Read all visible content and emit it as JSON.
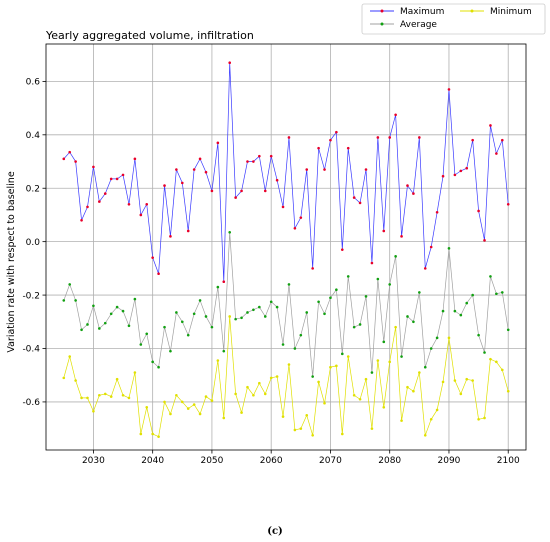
{
  "chart_data": {
    "type": "line",
    "title": "Yearly aggregated volume, infiltration",
    "xlabel": "",
    "ylabel": "Variation rate with respect to baseline",
    "caption": "(c)",
    "xlim": [
      2022,
      2103
    ],
    "ylim": [
      -0.78,
      0.74
    ],
    "xticks": [
      2030,
      2040,
      2050,
      2060,
      2070,
      2080,
      2090,
      2100
    ],
    "yticks": [
      -0.6,
      -0.4,
      -0.2,
      0.0,
      0.2,
      0.4,
      0.6
    ],
    "grid": true,
    "legend_position": "top-right, above plot",
    "x": [
      2025,
      2026,
      2027,
      2028,
      2029,
      2030,
      2031,
      2032,
      2033,
      2034,
      2035,
      2036,
      2037,
      2038,
      2039,
      2040,
      2041,
      2042,
      2043,
      2044,
      2045,
      2046,
      2047,
      2048,
      2049,
      2050,
      2051,
      2052,
      2053,
      2054,
      2055,
      2056,
      2057,
      2058,
      2059,
      2060,
      2061,
      2062,
      2063,
      2064,
      2065,
      2066,
      2067,
      2068,
      2069,
      2070,
      2071,
      2072,
      2073,
      2074,
      2075,
      2076,
      2077,
      2078,
      2079,
      2080,
      2081,
      2082,
      2083,
      2084,
      2085,
      2086,
      2087,
      2088,
      2089,
      2090,
      2091,
      2092,
      2093,
      2094,
      2095,
      2096,
      2097,
      2098,
      2099,
      2100
    ],
    "series": [
      {
        "name": "Maximum",
        "line_color": "#3a3aff",
        "marker_color": "#e8002a",
        "values": [
          0.31,
          0.335,
          0.3,
          0.08,
          0.13,
          0.28,
          0.15,
          0.18,
          0.235,
          0.235,
          0.25,
          0.14,
          0.31,
          0.1,
          0.14,
          -0.06,
          -0.12,
          0.21,
          0.02,
          0.27,
          0.22,
          0.04,
          0.27,
          0.31,
          0.26,
          0.19,
          0.37,
          -0.15,
          0.67,
          0.165,
          0.19,
          0.3,
          0.3,
          0.32,
          0.19,
          0.32,
          0.23,
          0.13,
          0.39,
          0.05,
          0.09,
          0.27,
          -0.1,
          0.35,
          0.27,
          0.38,
          0.41,
          -0.03,
          0.35,
          0.165,
          0.145,
          0.27,
          -0.08,
          0.39,
          0.04,
          0.39,
          0.475,
          0.02,
          0.21,
          0.18,
          0.39,
          -0.1,
          -0.02,
          0.11,
          0.245,
          0.57,
          0.25,
          0.265,
          0.275,
          0.38,
          0.115,
          0.005,
          0.435,
          0.33,
          0.38,
          0.14
        ]
      },
      {
        "name": "Average",
        "line_color": "#a0a0a0",
        "marker_color": "#12a012",
        "values": [
          -0.22,
          -0.16,
          -0.22,
          -0.33,
          -0.31,
          -0.24,
          -0.325,
          -0.305,
          -0.27,
          -0.245,
          -0.26,
          -0.315,
          -0.215,
          -0.385,
          -0.345,
          -0.45,
          -0.47,
          -0.32,
          -0.41,
          -0.265,
          -0.3,
          -0.35,
          -0.27,
          -0.22,
          -0.28,
          -0.32,
          -0.17,
          -0.41,
          0.035,
          -0.29,
          -0.285,
          -0.265,
          -0.255,
          -0.245,
          -0.28,
          -0.225,
          -0.245,
          -0.385,
          -0.16,
          -0.4,
          -0.35,
          -0.265,
          -0.505,
          -0.225,
          -0.27,
          -0.21,
          -0.18,
          -0.42,
          -0.13,
          -0.32,
          -0.31,
          -0.205,
          -0.49,
          -0.14,
          -0.375,
          -0.16,
          -0.055,
          -0.43,
          -0.28,
          -0.3,
          -0.19,
          -0.47,
          -0.4,
          -0.36,
          -0.26,
          -0.025,
          -0.26,
          -0.275,
          -0.23,
          -0.2,
          -0.35,
          -0.415,
          -0.13,
          -0.195,
          -0.19,
          -0.33
        ]
      },
      {
        "name": "Minimum",
        "line_color": "#e0e000",
        "marker_color": "#e0e000",
        "values": [
          -0.51,
          -0.43,
          -0.52,
          -0.585,
          -0.585,
          -0.635,
          -0.575,
          -0.57,
          -0.58,
          -0.515,
          -0.575,
          -0.585,
          -0.49,
          -0.72,
          -0.62,
          -0.72,
          -0.73,
          -0.6,
          -0.645,
          -0.575,
          -0.6,
          -0.625,
          -0.61,
          -0.645,
          -0.58,
          -0.595,
          -0.445,
          -0.66,
          -0.28,
          -0.57,
          -0.64,
          -0.545,
          -0.575,
          -0.53,
          -0.57,
          -0.51,
          -0.505,
          -0.655,
          -0.46,
          -0.705,
          -0.7,
          -0.65,
          -0.725,
          -0.525,
          -0.605,
          -0.47,
          -0.465,
          -0.72,
          -0.43,
          -0.575,
          -0.59,
          -0.515,
          -0.7,
          -0.445,
          -0.62,
          -0.45,
          -0.32,
          -0.67,
          -0.545,
          -0.56,
          -0.49,
          -0.725,
          -0.665,
          -0.63,
          -0.525,
          -0.36,
          -0.52,
          -0.57,
          -0.515,
          -0.52,
          -0.665,
          -0.66,
          -0.44,
          -0.45,
          -0.48,
          -0.56
        ]
      }
    ]
  }
}
